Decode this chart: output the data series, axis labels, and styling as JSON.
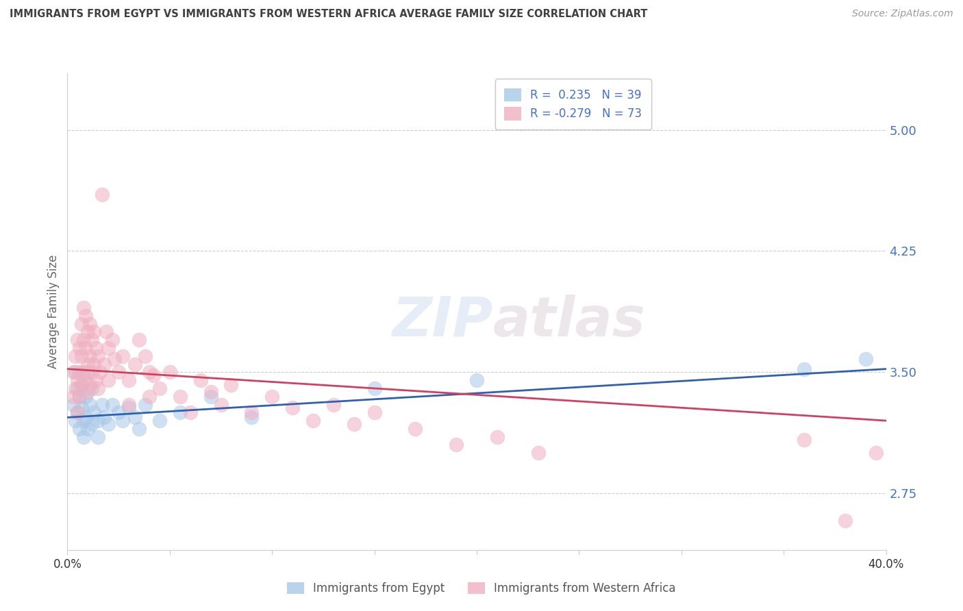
{
  "title": "IMMIGRANTS FROM EGYPT VS IMMIGRANTS FROM WESTERN AFRICA AVERAGE FAMILY SIZE CORRELATION CHART",
  "source": "Source: ZipAtlas.com",
  "ylabel": "Average Family Size",
  "yticks": [
    2.75,
    3.5,
    4.25,
    5.0
  ],
  "xlim": [
    0.0,
    0.4
  ],
  "ylim": [
    2.4,
    5.35
  ],
  "watermark_text": "ZIPatlas",
  "legend_line1": "R =  0.235   N = 39",
  "legend_line2": "R = -0.279   N = 73",
  "legend_label_egypt": "Immigrants from Egypt",
  "legend_label_wafrica": "Immigrants from Western Africa",
  "egypt_color": "#a8c8e8",
  "wafrica_color": "#f0b0c0",
  "trend_egypt_color": "#3060b0",
  "trend_wafrica_color": "#d04060",
  "axis_label_color": "#4472c4",
  "title_color": "#404040",
  "egypt_points": [
    [
      0.003,
      3.3
    ],
    [
      0.004,
      3.5
    ],
    [
      0.004,
      3.2
    ],
    [
      0.005,
      3.4
    ],
    [
      0.005,
      3.25
    ],
    [
      0.006,
      3.35
    ],
    [
      0.006,
      3.15
    ],
    [
      0.007,
      3.42
    ],
    [
      0.007,
      3.28
    ],
    [
      0.008,
      3.2
    ],
    [
      0.008,
      3.1
    ],
    [
      0.009,
      3.35
    ],
    [
      0.009,
      3.22
    ],
    [
      0.01,
      3.5
    ],
    [
      0.01,
      3.15
    ],
    [
      0.011,
      3.3
    ],
    [
      0.012,
      3.4
    ],
    [
      0.012,
      3.18
    ],
    [
      0.013,
      3.25
    ],
    [
      0.015,
      3.2
    ],
    [
      0.015,
      3.1
    ],
    [
      0.017,
      3.3
    ],
    [
      0.018,
      3.22
    ],
    [
      0.02,
      3.18
    ],
    [
      0.022,
      3.3
    ],
    [
      0.025,
      3.25
    ],
    [
      0.027,
      3.2
    ],
    [
      0.03,
      3.28
    ],
    [
      0.033,
      3.22
    ],
    [
      0.035,
      3.15
    ],
    [
      0.038,
      3.3
    ],
    [
      0.045,
      3.2
    ],
    [
      0.055,
      3.25
    ],
    [
      0.07,
      3.35
    ],
    [
      0.09,
      3.22
    ],
    [
      0.15,
      3.4
    ],
    [
      0.2,
      3.45
    ],
    [
      0.36,
      3.52
    ],
    [
      0.39,
      3.58
    ]
  ],
  "wafrica_points": [
    [
      0.003,
      3.5
    ],
    [
      0.003,
      3.35
    ],
    [
      0.004,
      3.6
    ],
    [
      0.004,
      3.4
    ],
    [
      0.005,
      3.7
    ],
    [
      0.005,
      3.45
    ],
    [
      0.005,
      3.25
    ],
    [
      0.006,
      3.65
    ],
    [
      0.006,
      3.5
    ],
    [
      0.006,
      3.35
    ],
    [
      0.007,
      3.8
    ],
    [
      0.007,
      3.6
    ],
    [
      0.007,
      3.42
    ],
    [
      0.008,
      3.9
    ],
    [
      0.008,
      3.7
    ],
    [
      0.008,
      3.5
    ],
    [
      0.009,
      3.85
    ],
    [
      0.009,
      3.65
    ],
    [
      0.009,
      3.45
    ],
    [
      0.01,
      3.75
    ],
    [
      0.01,
      3.55
    ],
    [
      0.01,
      3.38
    ],
    [
      0.011,
      3.8
    ],
    [
      0.011,
      3.6
    ],
    [
      0.011,
      3.42
    ],
    [
      0.012,
      3.7
    ],
    [
      0.012,
      3.5
    ],
    [
      0.013,
      3.75
    ],
    [
      0.013,
      3.55
    ],
    [
      0.014,
      3.65
    ],
    [
      0.014,
      3.45
    ],
    [
      0.015,
      3.6
    ],
    [
      0.015,
      3.4
    ],
    [
      0.016,
      3.5
    ],
    [
      0.017,
      4.6
    ],
    [
      0.018,
      3.55
    ],
    [
      0.019,
      3.75
    ],
    [
      0.02,
      3.65
    ],
    [
      0.02,
      3.45
    ],
    [
      0.022,
      3.7
    ],
    [
      0.023,
      3.58
    ],
    [
      0.025,
      3.5
    ],
    [
      0.027,
      3.6
    ],
    [
      0.03,
      3.45
    ],
    [
      0.03,
      3.3
    ],
    [
      0.033,
      3.55
    ],
    [
      0.035,
      3.7
    ],
    [
      0.038,
      3.6
    ],
    [
      0.04,
      3.5
    ],
    [
      0.04,
      3.35
    ],
    [
      0.042,
      3.48
    ],
    [
      0.045,
      3.4
    ],
    [
      0.05,
      3.5
    ],
    [
      0.055,
      3.35
    ],
    [
      0.06,
      3.25
    ],
    [
      0.065,
      3.45
    ],
    [
      0.07,
      3.38
    ],
    [
      0.075,
      3.3
    ],
    [
      0.08,
      3.42
    ],
    [
      0.09,
      3.25
    ],
    [
      0.1,
      3.35
    ],
    [
      0.11,
      3.28
    ],
    [
      0.12,
      3.2
    ],
    [
      0.13,
      3.3
    ],
    [
      0.14,
      3.18
    ],
    [
      0.15,
      3.25
    ],
    [
      0.17,
      3.15
    ],
    [
      0.19,
      3.05
    ],
    [
      0.21,
      3.1
    ],
    [
      0.23,
      3.0
    ],
    [
      0.36,
      3.08
    ],
    [
      0.38,
      2.58
    ],
    [
      0.395,
      3.0
    ]
  ]
}
